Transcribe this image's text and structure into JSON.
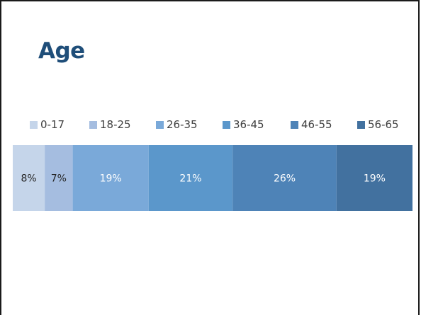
{
  "slide": {
    "title": "Age"
  },
  "chart_data": {
    "type": "bar",
    "stacked": true,
    "orientation": "horizontal",
    "legend_position": "top",
    "grid": false,
    "title": "",
    "categories": [
      "0-17",
      "18-25",
      "26-35",
      "36-45",
      "46-55",
      "56-65"
    ],
    "values": [
      8,
      7,
      19,
      21,
      26,
      19
    ],
    "labels": [
      "8%",
      "7%",
      "19%",
      "21%",
      "26%",
      "19%"
    ],
    "colors": [
      "#c5d5ea",
      "#a5bde0",
      "#7aa9d9",
      "#5b97cb",
      "#4e83b7",
      "#42719f"
    ],
    "label_colors": [
      "#262626",
      "#262626",
      "#ffffff",
      "#ffffff",
      "#ffffff",
      "#ffffff"
    ]
  }
}
